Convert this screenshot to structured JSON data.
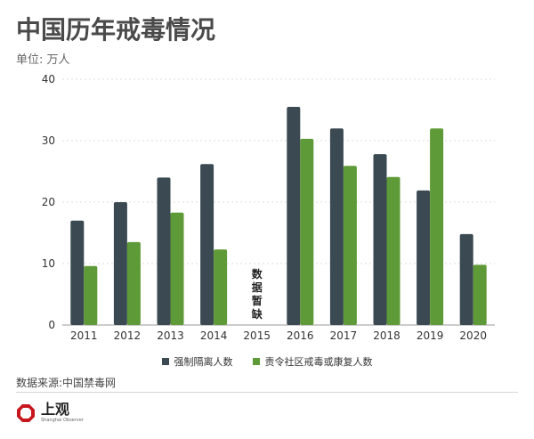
{
  "header": {
    "title": "中国历年戒毒情况",
    "subtitle": "单位: 万人"
  },
  "colors": {
    "series1": "#3b4a52",
    "series2": "#5e9a37",
    "grid": "#dddddd",
    "axis": "#9a9a9a"
  },
  "chart_data": {
    "type": "bar",
    "categories": [
      "2011",
      "2012",
      "2013",
      "2014",
      "2015",
      "2016",
      "2017",
      "2018",
      "2019",
      "2020"
    ],
    "series": [
      {
        "name": "强制隔离人数",
        "values": [
          17,
          20,
          24,
          26.2,
          null,
          35.5,
          32,
          27.8,
          21.9,
          14.8
        ]
      },
      {
        "name": "责令社区戒毒或康复人数",
        "values": [
          9.6,
          13.5,
          18.3,
          12.3,
          null,
          30.3,
          25.9,
          24.1,
          32,
          9.8
        ]
      }
    ],
    "ylim": [
      0,
      40
    ],
    "yticks": [
      0,
      10,
      20,
      30,
      40
    ],
    "grid": true,
    "legend_position": "bottom-center",
    "annotations": [
      {
        "category": "2015",
        "text": "数据暂缺"
      }
    ]
  },
  "footer": {
    "source": "数据来源:中国禁毒网",
    "logo_cn": "上观",
    "logo_en": "Shanghai Observer",
    "logo_icon": "octagon-logo-icon"
  }
}
